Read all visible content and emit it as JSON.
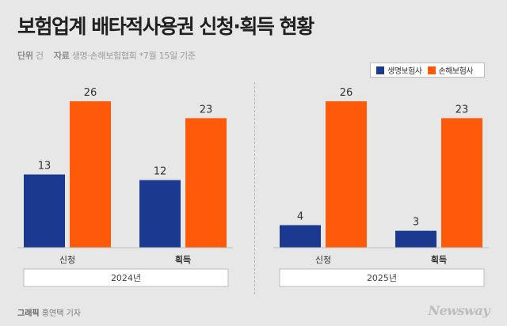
{
  "title": "보험업계 배타적사용권 신청·획득 현황",
  "meta": {
    "unit_label": "단위",
    "unit": "건",
    "source_label": "자료",
    "source": "생명·손해보험협회",
    "note": "*7월 15일 기준"
  },
  "footer": {
    "graphic_label": "그래픽",
    "author": "홍연택 기자",
    "brand": "Newsway"
  },
  "colors": {
    "life": "#1b3a8f",
    "nonlife": "#ff5a0a",
    "background": "#e7e7e7"
  },
  "chart_data": [
    {
      "type": "bar",
      "group_label": "2024년",
      "categories": [
        "신청",
        "획득"
      ],
      "series": [
        {
          "name": "생명보험사",
          "values": [
            13,
            12
          ]
        },
        {
          "name": "손해보험사",
          "values": [
            26,
            23
          ]
        }
      ],
      "ylim": [
        0,
        26
      ],
      "legend": "top-right"
    },
    {
      "type": "bar",
      "group_label": "2025년",
      "categories": [
        "신청",
        "획득"
      ],
      "series": [
        {
          "name": "생명보험사",
          "values": [
            4,
            3
          ]
        },
        {
          "name": "손해보험사",
          "values": [
            26,
            23
          ]
        }
      ],
      "ylim": [
        0,
        26
      ],
      "legend": "top-right"
    }
  ]
}
